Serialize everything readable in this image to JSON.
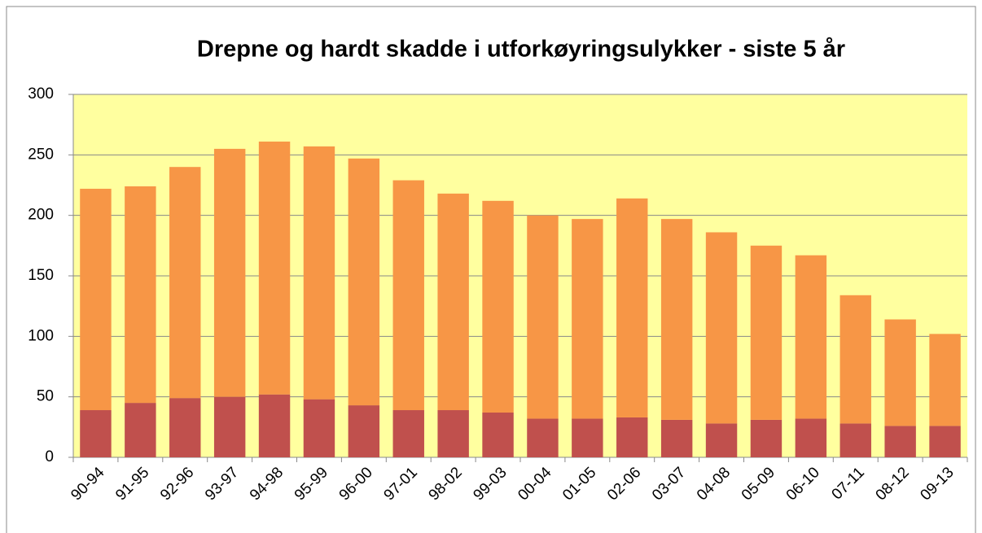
{
  "chart_data": {
    "type": "stacked_bar",
    "title": "Drepne og hardt skadde i utforkøyringsulykker - siste 5 år",
    "categories": [
      "90-94",
      "91-95",
      "92-96",
      "93-97",
      "94-98",
      "95-99",
      "96-00",
      "97-01",
      "98-02",
      "99-03",
      "00-04",
      "01-05",
      "02-06",
      "03-07",
      "04-08",
      "05-09",
      "06-10",
      "07-11",
      "08-12",
      "09-13"
    ],
    "series": [
      {
        "color": "#c0504d",
        "values": [
          39,
          45,
          49,
          50,
          52,
          48,
          43,
          39,
          39,
          37,
          32,
          32,
          33,
          31,
          28,
          31,
          32,
          28,
          26,
          26
        ]
      },
      {
        "color": "#f79646",
        "values": [
          183,
          179,
          191,
          205,
          209,
          209,
          204,
          190,
          179,
          175,
          168,
          165,
          181,
          166,
          158,
          144,
          135,
          106,
          88,
          76
        ]
      }
    ],
    "ylim": [
      0,
      300
    ],
    "yticks": [
      0,
      50,
      100,
      150,
      200,
      250,
      300
    ],
    "grid": true,
    "plot_background": "#ffff9f"
  }
}
